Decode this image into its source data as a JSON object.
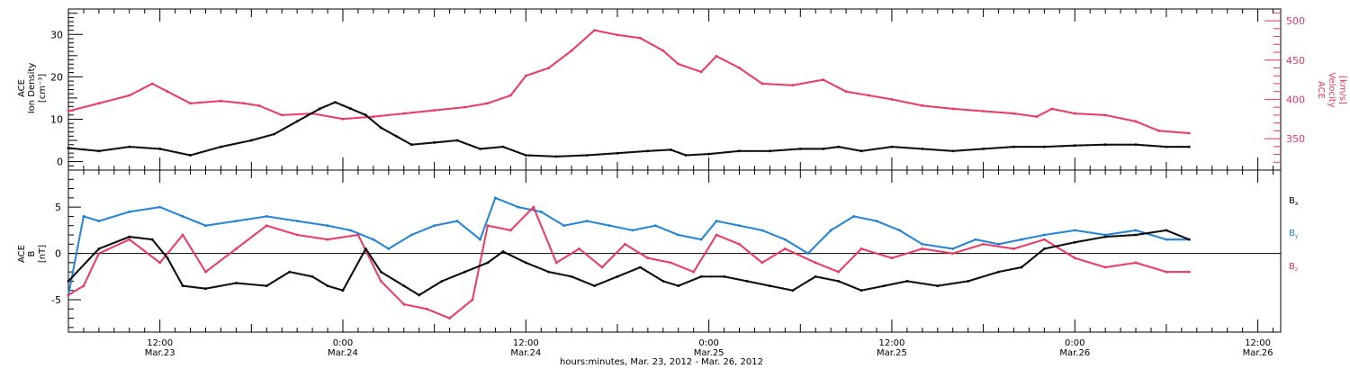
{
  "x_axis": {
    "title": "hours:minutes, Mar. 23, 2012 - Mar. 26, 2012",
    "ticks": [
      {
        "time": "12:00",
        "date": "Mar.23",
        "t": 12
      },
      {
        "time": "0:00",
        "date": "Mar.24",
        "t": 24
      },
      {
        "time": "12:00",
        "date": "Mar.24",
        "t": 36
      },
      {
        "time": "0:00",
        "date": "Mar.25",
        "t": 48
      },
      {
        "time": "12:00",
        "date": "Mar.25",
        "t": 60
      },
      {
        "time": "0:00",
        "date": "Mar.26",
        "t": 72
      },
      {
        "time": "12:00",
        "date": "Mar.26",
        "t": 84
      }
    ],
    "range_hours_from_mar23_0000": [
      6.0,
      85.5
    ]
  },
  "colors": {
    "density": "#000000",
    "velocity": "#e8355e",
    "bx": "#000000",
    "by": "#1a7fd4",
    "bz": "#e8355e"
  },
  "chart_data": [
    {
      "type": "scatter",
      "panel": "top",
      "ylabel_left": [
        "ACE",
        "Ion Density",
        "[cm⁻³]"
      ],
      "ylabel_right": [
        "ACE",
        "Velocity",
        "[km/s]"
      ],
      "ylim_left": [
        -2,
        36
      ],
      "yticks_left": [
        0,
        10,
        20,
        30
      ],
      "ylim_right": [
        310,
        515
      ],
      "yticks_right": [
        350,
        400,
        450,
        500
      ],
      "series": [
        {
          "axis": "left",
          "color": "#000000",
          "points": [
            [
              6.0,
              3.2
            ],
            [
              8.0,
              2.5
            ],
            [
              10.0,
              3.5
            ],
            [
              12.0,
              3.0
            ],
            [
              14.0,
              1.5
            ],
            [
              16.0,
              3.5
            ],
            [
              18.0,
              5.0
            ],
            [
              19.5,
              6.5
            ],
            [
              21.0,
              9.5
            ],
            [
              22.5,
              12.5
            ],
            [
              23.5,
              14.0
            ],
            [
              24.5,
              12.5
            ],
            [
              25.5,
              11.0
            ],
            [
              26.5,
              8.0
            ],
            [
              27.5,
              6.0
            ],
            [
              28.5,
              4.0
            ],
            [
              30.0,
              4.5
            ],
            [
              31.5,
              5.0
            ],
            [
              33.0,
              3.0
            ],
            [
              34.5,
              3.5
            ],
            [
              36.0,
              1.5
            ],
            [
              38.0,
              1.2
            ],
            [
              40.0,
              1.5
            ],
            [
              42.0,
              2.0
            ],
            [
              44.0,
              2.5
            ],
            [
              45.5,
              2.8
            ],
            [
              46.5,
              1.5
            ],
            [
              48.0,
              1.8
            ],
            [
              50.0,
              2.5
            ],
            [
              52.0,
              2.5
            ],
            [
              54.0,
              3.0
            ],
            [
              55.5,
              3.0
            ],
            [
              56.5,
              3.5
            ],
            [
              58.0,
              2.5
            ],
            [
              60.0,
              3.5
            ],
            [
              62.0,
              3.0
            ],
            [
              64.0,
              2.5
            ],
            [
              66.0,
              3.0
            ],
            [
              68.0,
              3.5
            ],
            [
              70.0,
              3.5
            ],
            [
              72.0,
              3.8
            ],
            [
              74.0,
              4.0
            ],
            [
              76.0,
              4.0
            ],
            [
              78.0,
              3.5
            ],
            [
              79.5,
              3.5
            ]
          ]
        },
        {
          "axis": "right",
          "color": "#e8355e",
          "points": [
            [
              6.0,
              385
            ],
            [
              8.0,
              395
            ],
            [
              10.0,
              405
            ],
            [
              11.5,
              420
            ],
            [
              12.5,
              410
            ],
            [
              14.0,
              395
            ],
            [
              16.0,
              398
            ],
            [
              17.5,
              395
            ],
            [
              18.5,
              392
            ],
            [
              20.0,
              380
            ],
            [
              22.0,
              382
            ],
            [
              24.0,
              375
            ],
            [
              26.0,
              378
            ],
            [
              28.0,
              382
            ],
            [
              30.0,
              386
            ],
            [
              32.0,
              390
            ],
            [
              33.5,
              395
            ],
            [
              35.0,
              405
            ],
            [
              36.0,
              430
            ],
            [
              37.5,
              440
            ],
            [
              39.0,
              462
            ],
            [
              40.5,
              488
            ],
            [
              42.0,
              482
            ],
            [
              43.5,
              478
            ],
            [
              45.0,
              462
            ],
            [
              46.0,
              445
            ],
            [
              47.5,
              435
            ],
            [
              48.5,
              455
            ],
            [
              50.0,
              440
            ],
            [
              51.5,
              420
            ],
            [
              53.5,
              418
            ],
            [
              55.5,
              425
            ],
            [
              57.0,
              410
            ],
            [
              58.5,
              405
            ],
            [
              60.0,
              400
            ],
            [
              62.0,
              392
            ],
            [
              64.0,
              388
            ],
            [
              66.0,
              385
            ],
            [
              68.0,
              382
            ],
            [
              69.5,
              378
            ],
            [
              70.5,
              388
            ],
            [
              72.0,
              382
            ],
            [
              74.0,
              380
            ],
            [
              76.0,
              372
            ],
            [
              77.5,
              360
            ],
            [
              79.5,
              357
            ]
          ]
        }
      ]
    },
    {
      "type": "scatter",
      "panel": "bottom",
      "ylabel_left": [
        "ACE",
        "B",
        "[nT]"
      ],
      "ylim": [
        -8.5,
        9.0
      ],
      "yticks": [
        -5,
        0,
        5
      ],
      "zero_line": true,
      "series": [
        {
          "name": "Bx",
          "label": "B",
          "subscript": "x",
          "color": "#000000",
          "points": [
            [
              6.0,
              -3.0
            ],
            [
              8.0,
              0.5
            ],
            [
              10.0,
              1.8
            ],
            [
              11.5,
              1.5
            ],
            [
              12.5,
              -0.5
            ],
            [
              13.5,
              -3.5
            ],
            [
              15.0,
              -3.8
            ],
            [
              17.0,
              -3.2
            ],
            [
              19.0,
              -3.5
            ],
            [
              20.5,
              -2.0
            ],
            [
              22.0,
              -2.5
            ],
            [
              23.0,
              -3.5
            ],
            [
              24.0,
              -4.0
            ],
            [
              25.5,
              0.5
            ],
            [
              26.5,
              -2.0
            ],
            [
              28.0,
              -3.5
            ],
            [
              29.0,
              -4.5
            ],
            [
              30.5,
              -3.0
            ],
            [
              32.0,
              -2.0
            ],
            [
              33.5,
              -1.0
            ],
            [
              34.5,
              0.2
            ],
            [
              36.0,
              -1.0
            ],
            [
              37.5,
              -2.0
            ],
            [
              39.0,
              -2.5
            ],
            [
              40.5,
              -3.5
            ],
            [
              42.0,
              -2.5
            ],
            [
              43.5,
              -1.5
            ],
            [
              45.0,
              -3.0
            ],
            [
              46.0,
              -3.5
            ],
            [
              47.5,
              -2.5
            ],
            [
              49.0,
              -2.5
            ],
            [
              50.5,
              -3.0
            ],
            [
              52.0,
              -3.5
            ],
            [
              53.5,
              -4.0
            ],
            [
              55.0,
              -2.5
            ],
            [
              56.5,
              -3.0
            ],
            [
              58.0,
              -4.0
            ],
            [
              59.5,
              -3.5
            ],
            [
              61.0,
              -3.0
            ],
            [
              63.0,
              -3.5
            ],
            [
              65.0,
              -3.0
            ],
            [
              67.0,
              -2.0
            ],
            [
              68.5,
              -1.5
            ],
            [
              70.0,
              0.5
            ],
            [
              72.0,
              1.2
            ],
            [
              74.0,
              1.8
            ],
            [
              76.0,
              2.0
            ],
            [
              78.0,
              2.5
            ],
            [
              79.5,
              1.5
            ]
          ]
        },
        {
          "name": "By",
          "label": "B",
          "subscript": "y",
          "color": "#1a7fd4",
          "points": [
            [
              6.0,
              -4.5
            ],
            [
              7.0,
              4.0
            ],
            [
              8.0,
              3.5
            ],
            [
              10.0,
              4.5
            ],
            [
              12.0,
              5.0
            ],
            [
              13.5,
              4.0
            ],
            [
              15.0,
              3.0
            ],
            [
              17.0,
              3.5
            ],
            [
              19.0,
              4.0
            ],
            [
              21.0,
              3.5
            ],
            [
              23.0,
              3.0
            ],
            [
              24.5,
              2.5
            ],
            [
              26.0,
              1.5
            ],
            [
              27.0,
              0.5
            ],
            [
              28.5,
              2.0
            ],
            [
              30.0,
              3.0
            ],
            [
              31.5,
              3.5
            ],
            [
              33.0,
              1.5
            ],
            [
              34.0,
              6.0
            ],
            [
              35.5,
              5.0
            ],
            [
              37.0,
              4.5
            ],
            [
              38.5,
              3.0
            ],
            [
              40.0,
              3.5
            ],
            [
              41.5,
              3.0
            ],
            [
              43.0,
              2.5
            ],
            [
              44.5,
              3.0
            ],
            [
              46.0,
              2.0
            ],
            [
              47.5,
              1.5
            ],
            [
              48.5,
              3.5
            ],
            [
              50.0,
              3.0
            ],
            [
              51.5,
              2.5
            ],
            [
              53.0,
              1.5
            ],
            [
              54.5,
              0.0
            ],
            [
              56.0,
              2.5
            ],
            [
              57.5,
              4.0
            ],
            [
              59.0,
              3.5
            ],
            [
              60.5,
              2.5
            ],
            [
              62.0,
              1.0
            ],
            [
              64.0,
              0.5
            ],
            [
              65.5,
              1.5
            ],
            [
              67.0,
              1.0
            ],
            [
              68.5,
              1.5
            ],
            [
              70.0,
              2.0
            ],
            [
              72.0,
              2.5
            ],
            [
              74.0,
              2.0
            ],
            [
              76.0,
              2.5
            ],
            [
              78.0,
              1.5
            ],
            [
              79.5,
              1.5
            ]
          ]
        },
        {
          "name": "Bz",
          "label": "B",
          "subscript": "z",
          "color": "#e8355e",
          "points": [
            [
              6.0,
              -4.5
            ],
            [
              7.0,
              -3.5
            ],
            [
              8.0,
              0.0
            ],
            [
              10.0,
              1.5
            ],
            [
              12.0,
              -1.0
            ],
            [
              13.5,
              2.0
            ],
            [
              15.0,
              -2.0
            ],
            [
              17.0,
              0.5
            ],
            [
              19.0,
              3.0
            ],
            [
              21.0,
              2.0
            ],
            [
              23.0,
              1.5
            ],
            [
              25.0,
              2.0
            ],
            [
              26.5,
              -3.0
            ],
            [
              28.0,
              -5.5
            ],
            [
              29.5,
              -6.0
            ],
            [
              31.0,
              -7.0
            ],
            [
              32.5,
              -5.0
            ],
            [
              33.5,
              3.0
            ],
            [
              35.0,
              2.5
            ],
            [
              36.5,
              5.0
            ],
            [
              38.0,
              -1.0
            ],
            [
              39.5,
              0.5
            ],
            [
              41.0,
              -1.5
            ],
            [
              42.5,
              1.0
            ],
            [
              44.0,
              -0.5
            ],
            [
              45.5,
              -1.0
            ],
            [
              47.0,
              -2.0
            ],
            [
              48.5,
              2.0
            ],
            [
              50.0,
              1.0
            ],
            [
              51.5,
              -1.0
            ],
            [
              53.0,
              0.5
            ],
            [
              55.0,
              -1.0
            ],
            [
              56.5,
              -2.0
            ],
            [
              58.0,
              0.5
            ],
            [
              60.0,
              -0.5
            ],
            [
              62.0,
              0.5
            ],
            [
              64.0,
              0.0
            ],
            [
              66.0,
              1.0
            ],
            [
              68.0,
              0.5
            ],
            [
              70.0,
              1.5
            ],
            [
              72.0,
              -0.5
            ],
            [
              74.0,
              -1.5
            ],
            [
              76.0,
              -1.0
            ],
            [
              78.0,
              -2.0
            ],
            [
              79.5,
              -2.0
            ]
          ]
        }
      ]
    }
  ]
}
